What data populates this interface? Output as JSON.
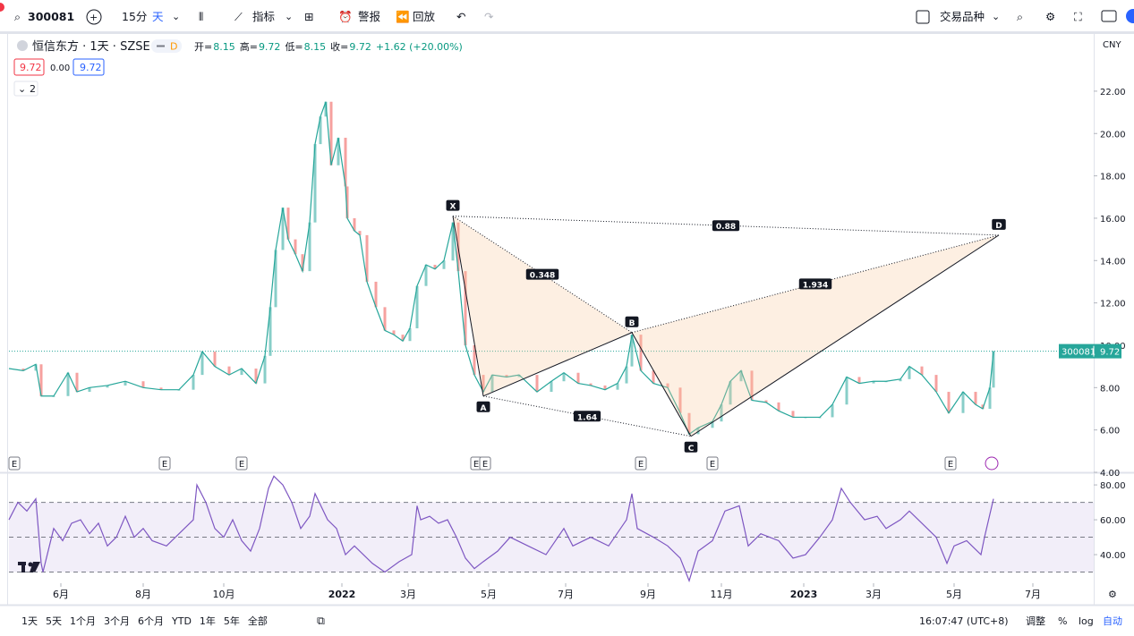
{
  "toolbar": {
    "symbol": "300081",
    "interval": "15分",
    "period": "天",
    "indicators": "指标",
    "alerts": "警报",
    "replay": "回放",
    "compare": "交易品种"
  },
  "legend": {
    "title": "恒信东方 · 1天 · SZSE",
    "badge": "D",
    "ohlc": [
      {
        "label": "开=",
        "value": "8.15"
      },
      {
        "label": "高=",
        "value": "9.72"
      },
      {
        "label": "低=",
        "value": "8.15"
      },
      {
        "label": "收=",
        "value": "9.72"
      }
    ],
    "change": "+1.62 (+20.00%)",
    "boxes": [
      "9.72",
      "0.00",
      "9.72"
    ],
    "collapse": "2"
  },
  "chart": {
    "currency": "CNY",
    "xlim": [
      0,
      606
    ],
    "xticks": [
      {
        "value": 29,
        "label": "6月"
      },
      {
        "value": 75,
        "label": "8月"
      },
      {
        "value": 120,
        "label": "10月"
      },
      {
        "value": 186,
        "label": "2022"
      },
      {
        "value": 223,
        "label": "3月"
      },
      {
        "value": 268,
        "label": "5月"
      },
      {
        "value": 311,
        "label": "7月"
      },
      {
        "value": 357,
        "label": "9月"
      },
      {
        "value": 398,
        "label": "11月"
      },
      {
        "value": 444,
        "label": "2023"
      },
      {
        "value": 483,
        "label": "3月"
      },
      {
        "value": 528,
        "label": "5月"
      },
      {
        "value": 572,
        "label": "7月"
      }
    ],
    "ylim": [
      4,
      24.7
    ],
    "yticks": [
      {
        "value": 4,
        "label": "4.00"
      },
      {
        "value": 6,
        "label": "6.00"
      },
      {
        "value": 8,
        "label": "8.00"
      },
      {
        "value": 10,
        "label": "10.00"
      },
      {
        "value": 12,
        "label": "12.00"
      },
      {
        "value": 14,
        "label": "14.00"
      },
      {
        "value": 16,
        "label": "16.00"
      },
      {
        "value": 18,
        "label": "18.00"
      },
      {
        "value": 20,
        "label": "20.00"
      },
      {
        "value": 22,
        "label": "22.00"
      }
    ],
    "price": {
      "color": "#26a69a",
      "x": [
        0,
        8,
        15,
        18,
        25,
        33,
        38,
        45,
        55,
        65,
        75,
        85,
        95,
        103,
        108,
        115,
        123,
        130,
        138,
        143,
        146,
        149,
        153,
        156,
        160,
        164,
        168,
        171,
        174,
        177,
        180,
        184,
        188,
        189,
        193,
        196,
        200,
        205,
        210,
        215,
        220,
        224,
        228,
        233,
        238,
        243,
        248,
        251,
        255,
        260,
        265,
        270,
        278,
        285,
        295,
        303,
        310,
        318,
        325,
        333,
        340,
        345,
        348,
        353,
        360,
        368,
        375,
        380,
        385,
        393,
        398,
        403,
        409,
        415,
        423,
        430,
        438,
        445,
        453,
        460,
        468,
        475,
        483,
        490,
        498,
        503,
        510,
        518,
        525,
        533,
        540,
        544,
        548,
        550
      ],
      "values": [
        8.9,
        8.8,
        9.1,
        7.6,
        7.6,
        8.7,
        7.8,
        8.0,
        8.1,
        8.3,
        8.0,
        7.9,
        7.9,
        8.6,
        9.7,
        9.0,
        8.6,
        8.9,
        8.2,
        9.5,
        11.8,
        14.5,
        16.5,
        15.0,
        14.3,
        13.5,
        15.8,
        19.5,
        20.8,
        21.5,
        18.5,
        19.8,
        17.5,
        16.0,
        15.4,
        15.2,
        13.0,
        11.8,
        10.7,
        10.5,
        10.2,
        10.8,
        12.8,
        13.8,
        13.6,
        14.0,
        15.8,
        13.5,
        10.0,
        8.6,
        7.8,
        8.6,
        8.5,
        8.6,
        7.8,
        8.3,
        8.7,
        8.2,
        8.1,
        7.9,
        8.2,
        9.0,
        10.5,
        8.8,
        8.2,
        8.0,
        6.8,
        5.8,
        6.1,
        6.4,
        7.2,
        8.3,
        8.8,
        7.4,
        7.3,
        6.9,
        6.6,
        6.6,
        6.6,
        7.2,
        8.5,
        8.2,
        8.3,
        8.3,
        8.4,
        9.0,
        8.6,
        7.8,
        6.8,
        7.8,
        7.2,
        7.0,
        8.0,
        9.72
      ]
    },
    "last_price": {
      "symbol": "300081",
      "value": 9.72,
      "label": "9.72"
    },
    "pattern": {
      "points": [
        "X",
        "A",
        "B",
        "C",
        "D"
      ],
      "x": [
        248,
        265,
        348,
        381,
        553
      ],
      "values": [
        16.1,
        7.6,
        10.6,
        5.7,
        15.2
      ],
      "ratios": {
        "XB": "0.348",
        "AC": "1.64",
        "BD": "1.934",
        "XD": "0.88"
      }
    },
    "events": {
      "label": "E",
      "x": [
        3,
        87,
        130,
        261,
        266,
        353,
        393,
        526
      ]
    },
    "rsi": {
      "color": "#7e57c2",
      "ylim": [
        23.6,
        86.2
      ],
      "yticks": [
        {
          "value": 40,
          "label": "40.00"
        },
        {
          "value": 60,
          "label": "60.00"
        },
        {
          "value": 80,
          "label": "80.00"
        }
      ],
      "bands": [
        30,
        50,
        70
      ],
      "x": [
        0,
        5,
        10,
        15,
        18,
        19,
        25,
        30,
        35,
        40,
        45,
        50,
        55,
        60,
        65,
        70,
        75,
        80,
        88,
        95,
        103,
        105,
        110,
        115,
        120,
        125,
        130,
        135,
        140,
        145,
        148,
        153,
        158,
        163,
        168,
        171,
        178,
        183,
        188,
        193,
        198,
        203,
        210,
        218,
        225,
        228,
        230,
        235,
        240,
        245,
        250,
        255,
        260,
        265,
        273,
        280,
        290,
        300,
        310,
        315,
        325,
        335,
        345,
        348,
        351,
        360,
        368,
        375,
        380,
        385,
        393,
        400,
        408,
        413,
        420,
        430,
        438,
        445,
        453,
        460,
        465,
        470,
        478,
        485,
        490,
        498,
        503,
        510,
        518,
        524,
        528,
        535,
        543,
        545,
        550
      ],
      "values": [
        60,
        70,
        65,
        72,
        35,
        30,
        55,
        48,
        58,
        60,
        52,
        58,
        45,
        50,
        62,
        50,
        55,
        48,
        45,
        52,
        60,
        80,
        70,
        55,
        50,
        60,
        48,
        42,
        55,
        78,
        85,
        80,
        70,
        55,
        62,
        75,
        60,
        55,
        40,
        45,
        40,
        35,
        30,
        36,
        40,
        68,
        60,
        62,
        58,
        60,
        50,
        38,
        32,
        36,
        42,
        50,
        45,
        40,
        55,
        45,
        50,
        45,
        60,
        75,
        55,
        50,
        45,
        38,
        25,
        42,
        48,
        65,
        68,
        45,
        52,
        48,
        38,
        40,
        50,
        60,
        78,
        70,
        60,
        62,
        55,
        60,
        65,
        58,
        50,
        35,
        45,
        48,
        40,
        50,
        72
      ]
    }
  },
  "bottom": {
    "ranges": [
      "1天",
      "5天",
      "1个月",
      "3个月",
      "6个月",
      "YTD",
      "1年",
      "5年",
      "全部"
    ],
    "time": "16:07:47 (UTC+8)",
    "adjust": "调整",
    "percent": "%",
    "log": "log",
    "auto": "自动"
  }
}
